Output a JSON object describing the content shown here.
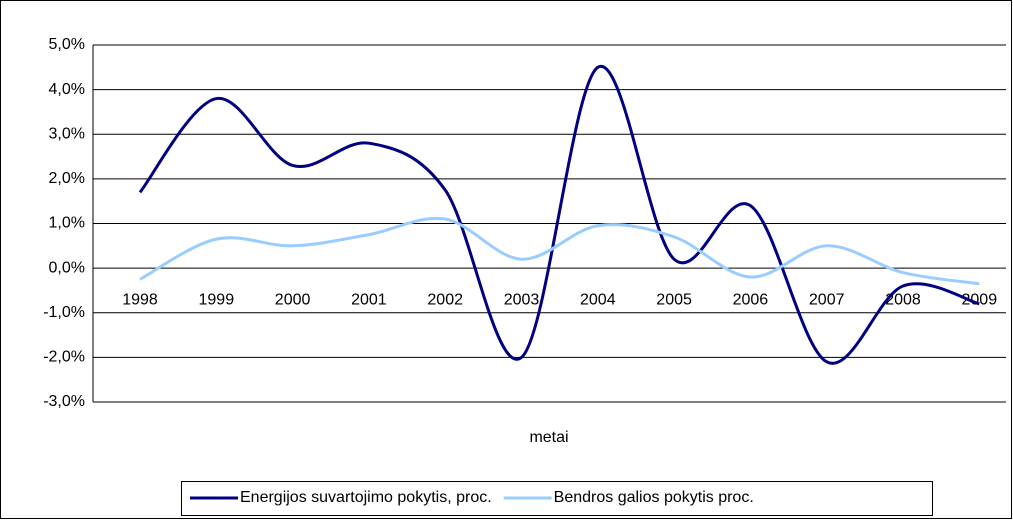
{
  "chart_data": {
    "type": "line",
    "x_label": "metai",
    "categories": [
      "1998",
      "1999",
      "2000",
      "2001",
      "2002",
      "2003",
      "2004",
      "2005",
      "2006",
      "2007",
      "2008",
      "2009"
    ],
    "series": [
      {
        "name": "Energijos suvartojimo pokytis, proc.",
        "color": "#000080",
        "values": [
          1.7,
          3.8,
          2.3,
          2.8,
          1.75,
          -2.0,
          4.5,
          0.2,
          1.4,
          -2.1,
          -0.4,
          -0.8
        ]
      },
      {
        "name": "Bendros galios pokytis proc.",
        "color": "#99ccff",
        "values": [
          -0.25,
          0.65,
          0.5,
          0.75,
          1.1,
          0.2,
          0.95,
          0.7,
          -0.2,
          0.5,
          -0.1,
          -0.35
        ]
      }
    ],
    "ylim": [
      -3,
      5
    ],
    "yticks": [
      {
        "value": -3,
        "label": "-3,0%"
      },
      {
        "value": -2,
        "label": "-2,0%"
      },
      {
        "value": -1,
        "label": "-1,0%"
      },
      {
        "value": 0,
        "label": "0,0%"
      },
      {
        "value": 1,
        "label": "1,0%"
      },
      {
        "value": 2,
        "label": "2,0%"
      },
      {
        "value": 3,
        "label": "3,0%"
      },
      {
        "value": 4,
        "label": "4,0%"
      },
      {
        "value": 5,
        "label": "5,0%"
      }
    ],
    "grid": true,
    "legend": "bottom"
  }
}
